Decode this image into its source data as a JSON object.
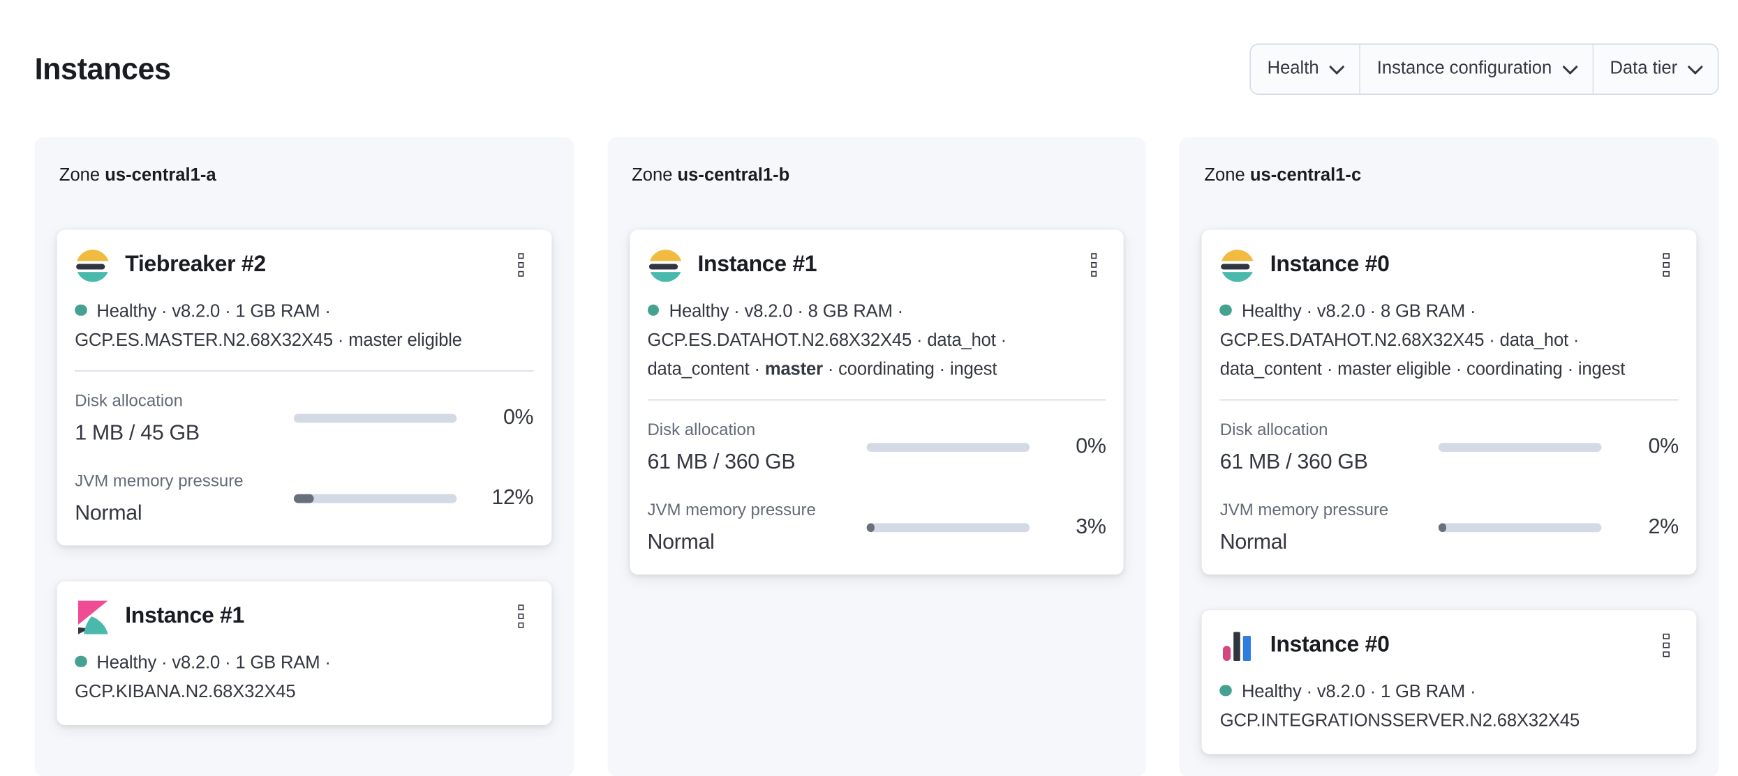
{
  "page": {
    "title": "Instances"
  },
  "filters": [
    {
      "label": "Health"
    },
    {
      "label": "Instance configuration"
    },
    {
      "label": "Data tier"
    }
  ],
  "colors": {
    "health_dot": "#45a291",
    "panel_bg": "#f5f7fa",
    "bar_track": "#d3dae6",
    "bar_fill": "#69707d",
    "es_yellow": "#f1bb3f",
    "es_dark": "#30353f",
    "es_teal": "#49b9ab",
    "kibana_pink": "#ee4c93",
    "integrations_blue": "#2f7de1",
    "integrations_pink": "#d5477f"
  },
  "zones": [
    {
      "label_prefix": "Zone",
      "name": "us-central1-a",
      "cards": [
        {
          "logo": "elasticsearch-logo",
          "title": "Tiebreaker #2",
          "meta_lines": [
            [
              {
                "text": "Healthy · v8.2.0 · 1 GB RAM ·"
              }
            ],
            [
              {
                "text": "GCP.ES.MASTER.N2.68X32X45 · master eligible"
              }
            ]
          ],
          "metrics": [
            {
              "label": "Disk allocation",
              "value": "1 MB / 45 GB",
              "percent": 0,
              "percent_label": "0%"
            },
            {
              "label": "JVM memory pressure",
              "value": "Normal",
              "percent": 12,
              "percent_label": "12%"
            }
          ]
        },
        {
          "logo": "kibana-logo",
          "title": "Instance #1",
          "meta_lines": [
            [
              {
                "text": "Healthy · v8.2.0 · 1 GB RAM ·"
              }
            ],
            [
              {
                "text": "GCP.KIBANA.N2.68X32X45"
              }
            ]
          ],
          "metrics": []
        }
      ]
    },
    {
      "label_prefix": "Zone",
      "name": "us-central1-b",
      "cards": [
        {
          "logo": "elasticsearch-logo",
          "title": "Instance #1",
          "meta_lines": [
            [
              {
                "text": "Healthy · v8.2.0 · 8 GB RAM ·"
              }
            ],
            [
              {
                "text": "GCP.ES.DATAHOT.N2.68X32X45 · data_hot ·"
              }
            ],
            [
              {
                "text": "data_content · "
              },
              {
                "text": "master",
                "bold": true
              },
              {
                "text": " · coordinating · ingest"
              }
            ]
          ],
          "metrics": [
            {
              "label": "Disk allocation",
              "value": "61 MB / 360 GB",
              "percent": 0,
              "percent_label": "0%"
            },
            {
              "label": "JVM memory pressure",
              "value": "Normal",
              "percent": 3,
              "percent_label": "3%"
            }
          ]
        }
      ]
    },
    {
      "label_prefix": "Zone",
      "name": "us-central1-c",
      "cards": [
        {
          "logo": "elasticsearch-logo",
          "title": "Instance #0",
          "meta_lines": [
            [
              {
                "text": "Healthy · v8.2.0 · 8 GB RAM ·"
              }
            ],
            [
              {
                "text": "GCP.ES.DATAHOT.N2.68X32X45 · data_hot ·"
              }
            ],
            [
              {
                "text": "data_content · master eligible · coordinating · ingest"
              }
            ]
          ],
          "metrics": [
            {
              "label": "Disk allocation",
              "value": "61 MB / 360 GB",
              "percent": 0,
              "percent_label": "0%"
            },
            {
              "label": "JVM memory pressure",
              "value": "Normal",
              "percent": 2,
              "percent_label": "2%"
            }
          ]
        },
        {
          "logo": "integrations-server-logo",
          "title": "Instance #0",
          "meta_lines": [
            [
              {
                "text": "Healthy · v8.2.0 · 1 GB RAM ·"
              }
            ],
            [
              {
                "text": "GCP.INTEGRATIONSSERVER.N2.68X32X45"
              }
            ]
          ],
          "metrics": []
        }
      ]
    }
  ]
}
